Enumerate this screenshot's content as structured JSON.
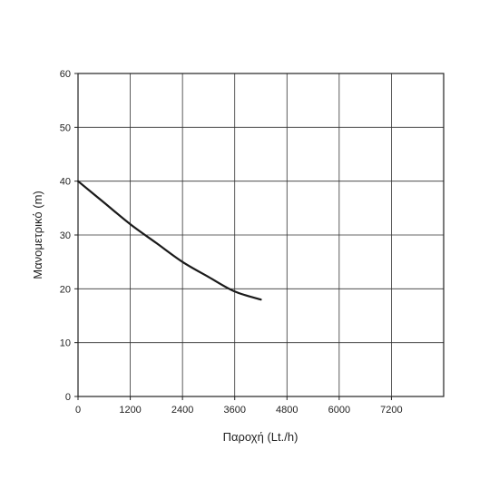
{
  "chart_data": {
    "type": "line",
    "xlabel": "Παροχή (Lt./h)",
    "ylabel": "Μανομετρικό  (m)",
    "xlim": [
      0,
      8400
    ],
    "ylim": [
      0,
      60
    ],
    "x_ticks": [
      0,
      1200,
      2400,
      3600,
      4800,
      6000,
      7200
    ],
    "y_ticks": [
      0,
      10,
      20,
      30,
      40,
      50,
      60
    ],
    "grid": true,
    "series": [
      {
        "color": "#1a1a1a",
        "x": [
          0,
          600,
          1200,
          1800,
          2400,
          3000,
          3600,
          4200
        ],
        "y": [
          40,
          36,
          32,
          28.5,
          25,
          22.2,
          19.5,
          18
        ]
      }
    ]
  }
}
